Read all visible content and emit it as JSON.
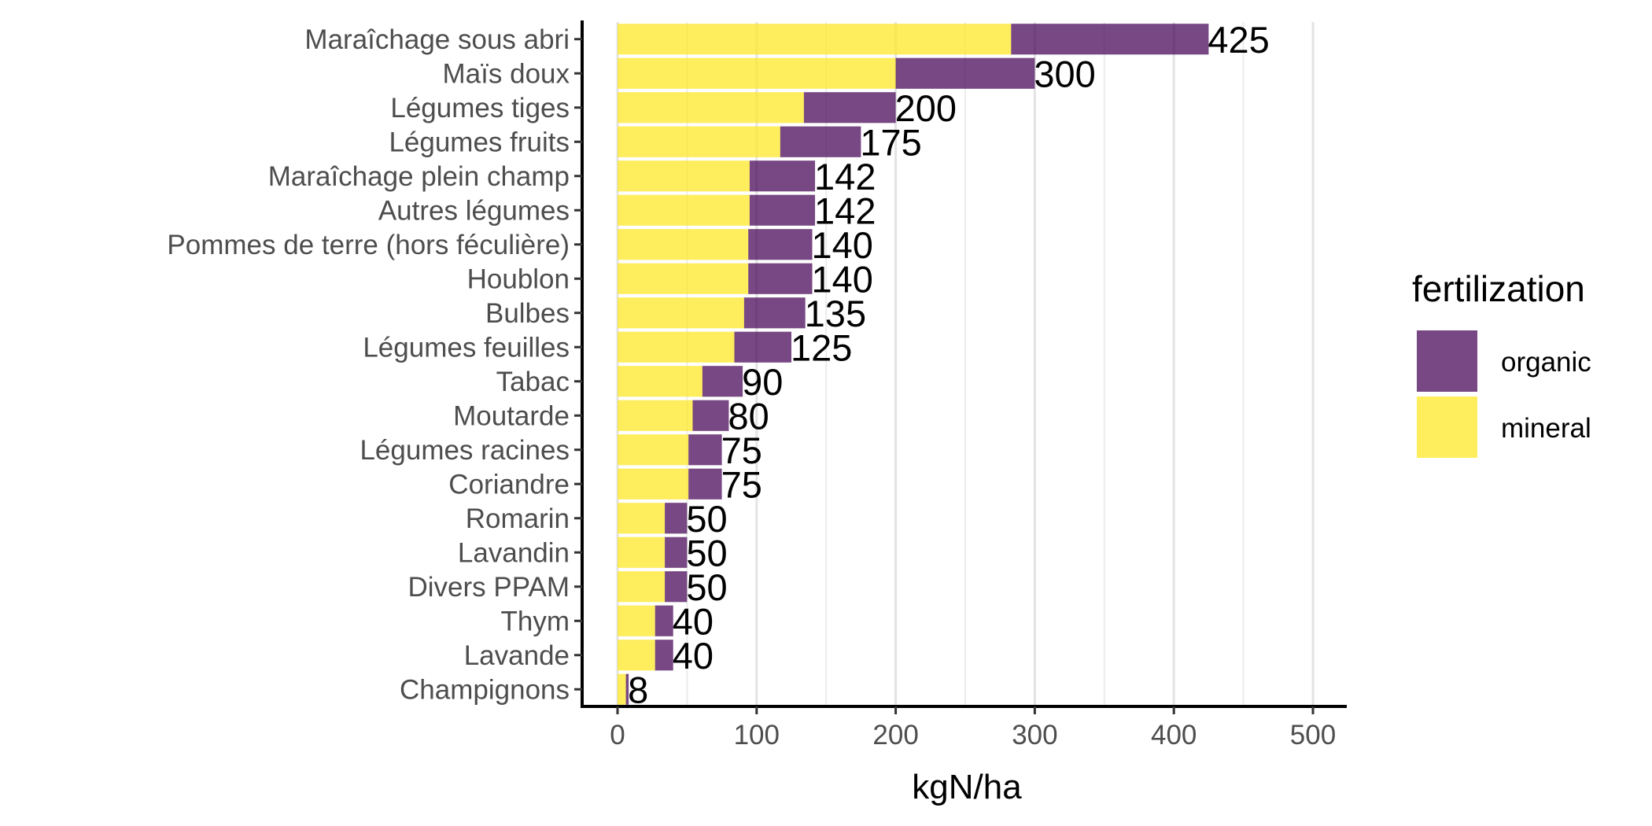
{
  "chart_data": {
    "type": "bar",
    "orientation": "horizontal",
    "stacked": true,
    "xlabel": "kgN/ha",
    "ylabel": "",
    "xlim": [
      -25,
      525
    ],
    "xticks": [
      0,
      100,
      200,
      300,
      400,
      500
    ],
    "grid": "vertical major and minor lines",
    "legend": {
      "title": "fertilization",
      "position": "right",
      "entries": [
        {
          "name": "organic",
          "color": "#440154"
        },
        {
          "name": "mineral",
          "color": "#fde725"
        }
      ]
    },
    "categories": [
      "Maraîchage sous abri",
      "Maïs doux",
      "Légumes tiges",
      "Légumes fruits",
      "Maraîchage plein champ",
      "Autres légumes",
      "Pommes de terre (hors féculière)",
      "Houblon",
      "Bulbes",
      "Légumes feuilles",
      "Tabac",
      "Moutarde",
      "Légumes racines",
      "Coriandre",
      "Romarin",
      "Lavandin",
      "Divers PPAM",
      "Thym",
      "Lavande",
      "Champignons"
    ],
    "series": [
      {
        "name": "mineral",
        "color": "#fde725",
        "values": [
          283,
          200,
          134,
          117,
          95,
          95,
          94,
          94,
          91,
          84,
          61,
          54,
          51,
          51,
          34,
          34,
          34,
          27,
          27,
          6
        ]
      },
      {
        "name": "organic",
        "color": "#440154",
        "values": [
          142,
          100,
          66,
          58,
          47,
          47,
          46,
          46,
          44,
          41,
          29,
          26,
          24,
          24,
          16,
          16,
          16,
          13,
          13,
          2
        ]
      }
    ],
    "totals": [
      "425",
      "300",
      "200",
      "175",
      "142",
      "142",
      "140",
      "140",
      "135",
      "125",
      "90",
      "80",
      "75",
      "75",
      "50",
      "50",
      "50",
      "40",
      "40",
      "8"
    ]
  }
}
